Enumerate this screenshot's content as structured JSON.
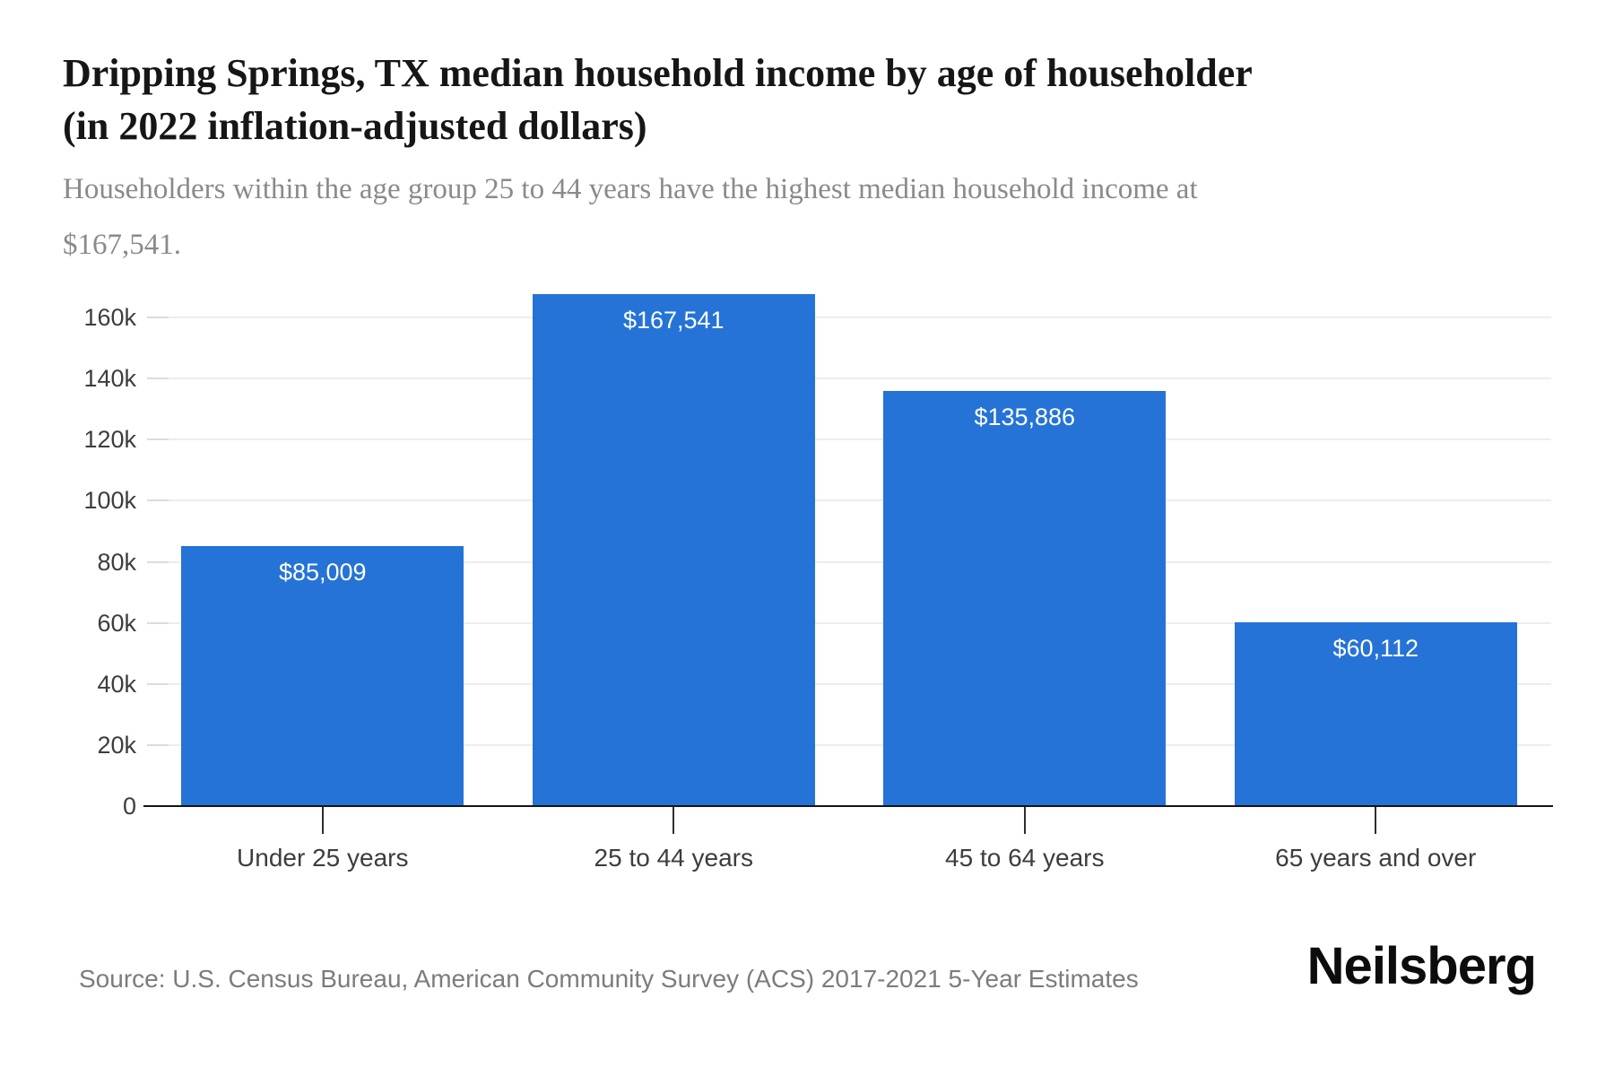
{
  "header": {
    "title_line1": "Dripping Springs, TX median household income by age of householder",
    "title_line2": "(in 2022 inflation-adjusted dollars)",
    "subtitle_line1": "Householders within the age group 25 to 44 years have the highest median household income at",
    "subtitle_line2": "$167,541."
  },
  "chart_data": {
    "type": "bar",
    "title": "Dripping Springs, TX median household income by age of householder (in 2022 inflation-adjusted dollars)",
    "categories": [
      "Under 25 years",
      "25 to 44 years",
      "45 to 64 years",
      "65 years and over"
    ],
    "values": [
      85009,
      167541,
      135886,
      60112
    ],
    "value_labels": [
      "$85,009",
      "$167,541",
      "$135,886",
      "$60,112"
    ],
    "xlabel": "",
    "ylabel": "",
    "ylim": [
      0,
      172000
    ],
    "y_ticks": [
      {
        "value": 0,
        "label": "0"
      },
      {
        "value": 20000,
        "label": "20k"
      },
      {
        "value": 40000,
        "label": "40k"
      },
      {
        "value": 60000,
        "label": "60k"
      },
      {
        "value": 80000,
        "label": "80k"
      },
      {
        "value": 100000,
        "label": "100k"
      },
      {
        "value": 120000,
        "label": "120k"
      },
      {
        "value": 140000,
        "label": "140k"
      },
      {
        "value": 160000,
        "label": "160k"
      }
    ],
    "grid": "horizontal",
    "legend": "none",
    "bar_color": "#2573d6",
    "value_label_color": "#ffffff"
  },
  "footer": {
    "source": "Source: U.S. Census Bureau, American Community Survey (ACS) 2017-2021 5-Year Estimates",
    "logo": "Neilsberg"
  }
}
